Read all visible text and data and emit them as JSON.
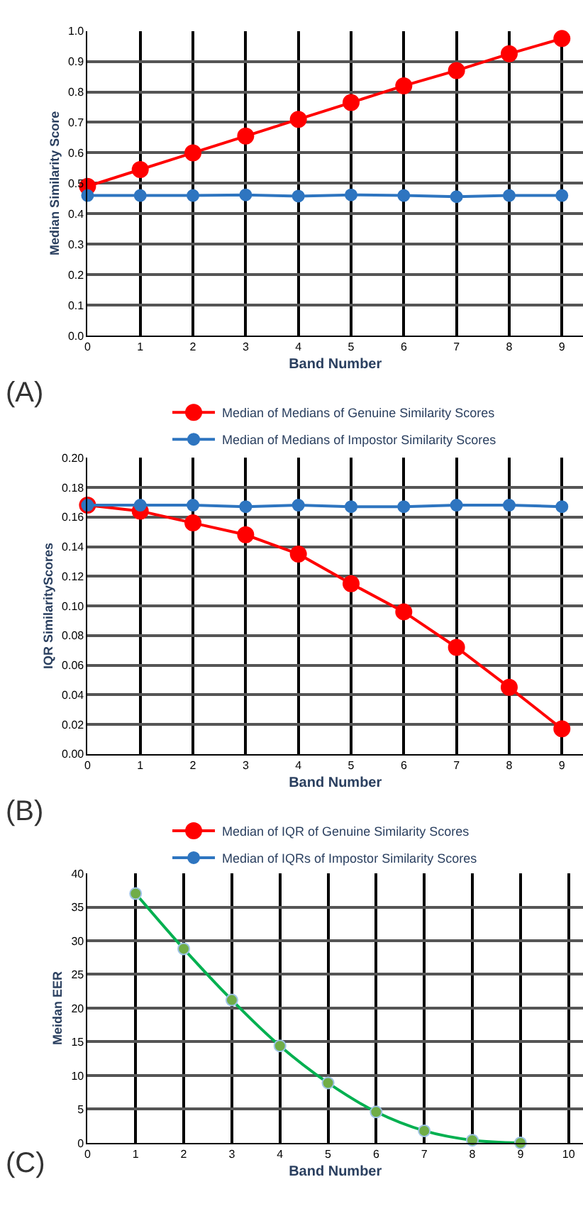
{
  "chart_data": [
    {
      "type": "line",
      "xlabel": "Band Number",
      "ylabel": "Median Similarity Score",
      "x": [
        0,
        1,
        2,
        3,
        4,
        5,
        6,
        7,
        8,
        9
      ],
      "xlim": [
        0,
        9.4
      ],
      "xticks": [
        0,
        1,
        2,
        3,
        4,
        5,
        6,
        7,
        8,
        9
      ],
      "ylim": [
        0,
        1
      ],
      "yticks": [
        {
          "value": 0,
          "label": "0.0"
        },
        0.1,
        0.2,
        0.3,
        0.4,
        0.5,
        0.6,
        0.7,
        0.8,
        0.9,
        {
          "value": 1,
          "label": "1.0"
        }
      ],
      "grid": true,
      "legend": "bottom",
      "marker": "circle",
      "annotations": [
        "(A)"
      ],
      "series": [
        {
          "name": "Median of Medians of Genuine Similarity Scores",
          "color": "#ff0000",
          "values": [
            0.49,
            0.545,
            0.6,
            0.655,
            0.71,
            0.765,
            0.82,
            0.87,
            0.925,
            0.975
          ]
        },
        {
          "name": "Median of Medians of Impostor Similarity Scores",
          "color": "#2e75c0",
          "values": [
            0.46,
            0.46,
            0.46,
            0.462,
            0.458,
            0.462,
            0.46,
            0.456,
            0.46,
            0.46
          ]
        }
      ]
    },
    {
      "type": "line",
      "xlabel": "Band Number",
      "ylabel": "IQR SimilarityScores",
      "x": [
        0,
        1,
        2,
        3,
        4,
        5,
        6,
        7,
        8,
        9
      ],
      "xlim": [
        0,
        9.4
      ],
      "xticks": [
        0,
        1,
        2,
        3,
        4,
        5,
        6,
        7,
        8,
        9
      ],
      "ylim": [
        0,
        0.2
      ],
      "yticks": [
        {
          "value": 0,
          "label": "0.00"
        },
        0.02,
        0.04,
        0.06,
        0.08,
        {
          "value": 0.1,
          "label": "0.10"
        },
        0.12,
        0.14,
        0.16,
        0.18,
        {
          "value": 0.2,
          "label": "0.20"
        }
      ],
      "grid": true,
      "legend": "bottom",
      "marker": "circle",
      "annotations": [
        "(B)"
      ],
      "series": [
        {
          "name": "Median of IQR of Genuine Similarity Scores",
          "color": "#ff0000",
          "values": [
            0.168,
            0.164,
            0.156,
            0.148,
            0.135,
            0.115,
            0.096,
            0.072,
            0.045,
            0.017
          ]
        },
        {
          "name": "Median of IQRs of Impostor Similarity Scores",
          "color": "#2e75c0",
          "values": [
            0.168,
            0.168,
            0.168,
            0.167,
            0.168,
            0.167,
            0.167,
            0.168,
            0.168,
            0.167
          ]
        }
      ]
    },
    {
      "type": "line",
      "xlabel": "Band Number",
      "ylabel": "Meidan EER",
      "x": [
        1,
        2,
        3,
        4,
        5,
        6,
        7,
        8,
        9
      ],
      "xlim": [
        0,
        10.3
      ],
      "xticks": [
        0,
        1,
        2,
        3,
        4,
        5,
        6,
        7,
        8,
        9,
        10
      ],
      "ylim": [
        0,
        40
      ],
      "yticks": [
        0,
        5,
        10,
        15,
        20,
        25,
        30,
        35,
        40
      ],
      "grid": true,
      "marker": "circle",
      "annotations": [
        "(C)"
      ],
      "series": [
        {
          "color": "#00b050",
          "values": [
            37,
            28.8,
            21.2,
            14.4,
            8.9,
            4.6,
            1.8,
            0.4,
            0
          ]
        }
      ]
    }
  ]
}
